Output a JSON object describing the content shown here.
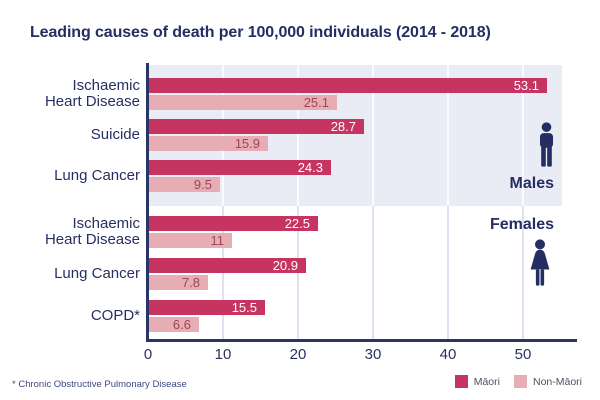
{
  "header": {
    "title": "Leading causes of death per 100,000 individuals (2014 - 2018)"
  },
  "footnote": "* Chronic Obstructive Pulmonary Disease",
  "legend": {
    "items": [
      {
        "label": "Māori",
        "color": "#c63462"
      },
      {
        "label": "Non-Māori",
        "color": "#e6adb4"
      }
    ]
  },
  "annotations": {
    "males_label": "Males",
    "females_label": "Females"
  },
  "colors": {
    "maori_bar": "#c63462",
    "non_maori_bar": "#e6adb4",
    "male_band_background": "#e9ecf5",
    "axis": "#2b3564",
    "text_navy": "#242e62"
  },
  "chart_data": {
    "type": "bar",
    "orientation": "horizontal",
    "title": "Leading causes of death per 100,000 individuals (2014 - 2018)",
    "series_names": [
      "Māori",
      "Non-Māori"
    ],
    "xlabel": "",
    "ylabel": "",
    "xlim": [
      0,
      57
    ],
    "x_ticks": [
      0,
      10,
      20,
      30,
      40,
      50
    ],
    "grid": true,
    "legend_position": "bottom-right",
    "groups": [
      {
        "group": "Males",
        "rows": [
          {
            "category": "Ischaemic Heart Disease",
            "label_lines": [
              "Ischaemic",
              "Heart Disease"
            ],
            "maori": 53.1,
            "non_maori": 25.1
          },
          {
            "category": "Suicide",
            "label_lines": [
              "Suicide"
            ],
            "maori": 28.7,
            "non_maori": 15.9
          },
          {
            "category": "Lung Cancer",
            "label_lines": [
              "Lung Cancer"
            ],
            "maori": 24.3,
            "non_maori": 9.5
          }
        ]
      },
      {
        "group": "Females",
        "rows": [
          {
            "category": "Ischaemic Heart Disease",
            "label_lines": [
              "Ischaemic",
              "Heart Disease"
            ],
            "maori": 22.5,
            "non_maori": 11
          },
          {
            "category": "Lung Cancer",
            "label_lines": [
              "Lung Cancer"
            ],
            "maori": 20.9,
            "non_maori": 7.8
          },
          {
            "category": "COPD*",
            "label_lines": [
              "COPD*"
            ],
            "maori": 15.5,
            "non_maori": 6.6
          }
        ]
      }
    ]
  }
}
